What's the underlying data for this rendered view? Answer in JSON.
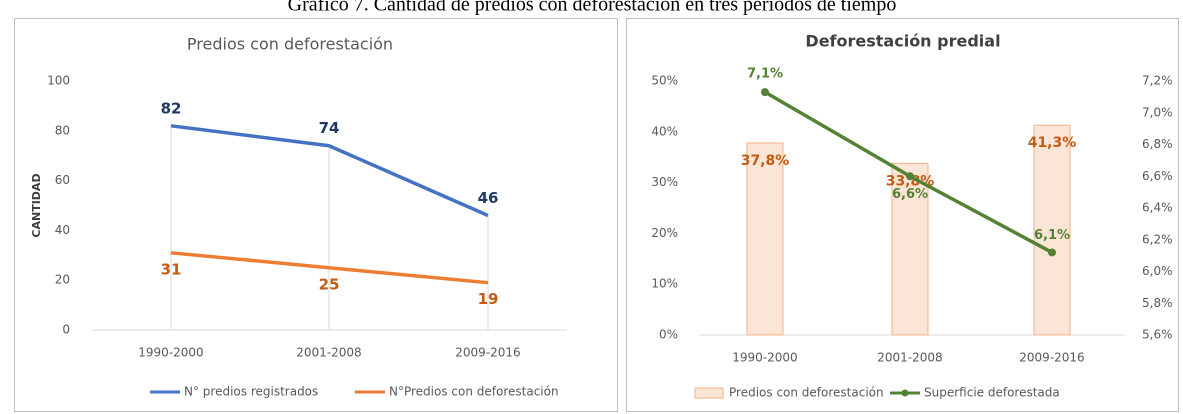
{
  "caption": "Gráfico 7. Cantidad de predios con deforestación en tres períodos de tiempo",
  "chart_data": [
    {
      "type": "line",
      "title": "Predios con deforestación",
      "y_label": "CANTIDAD",
      "categories": [
        "1990-2000",
        "2001-2008",
        "2009-2016"
      ],
      "series": [
        {
          "name": "N° predios registrados",
          "color": "#4472c4",
          "label_color": "#1f3864",
          "values": [
            82,
            74,
            46
          ]
        },
        {
          "name": "N°Predios con deforestación",
          "color": "#ed7d31",
          "label_color": "#c55a11",
          "values": [
            31,
            25,
            19
          ]
        }
      ],
      "ylim": [
        0,
        100
      ],
      "yticks": [
        0,
        20,
        40,
        60,
        80,
        100
      ],
      "grid": false,
      "legend": "bottom"
    },
    {
      "type": "bar_line",
      "title": "Deforestación predial",
      "categories": [
        "1990-2000",
        "2001-2008",
        "2009-2016"
      ],
      "series": [
        {
          "name": "Predios con deforestación",
          "type": "bar",
          "color": "#fbe5d6",
          "edge_color": "#f4b183",
          "label_color": "#c55a11",
          "values": [
            37.8,
            33.8,
            41.3
          ],
          "value_labels": [
            "37,8%",
            "33,8%",
            "41,3%"
          ]
        },
        {
          "name": "Superficie deforestada",
          "type": "line",
          "axis": "y2",
          "color": "#548235",
          "label_color": "#548235",
          "values": [
            7.13,
            6.6,
            6.12
          ],
          "value_labels": [
            "7,1%",
            "6,6%",
            "6,1%"
          ]
        }
      ],
      "ylim": [
        0,
        50
      ],
      "yticks": [
        {
          "value": 0,
          "label": "0%"
        },
        {
          "value": 10,
          "label": "10%"
        },
        {
          "value": 20,
          "label": "20%"
        },
        {
          "value": 30,
          "label": "30%"
        },
        {
          "value": 40,
          "label": "40%"
        },
        {
          "value": 50,
          "label": "50%"
        }
      ],
      "y2lim": [
        5.6,
        7.2
      ],
      "y2ticks": [
        {
          "value": 5.6,
          "label": "5,6%"
        },
        {
          "value": 5.8,
          "label": "5,8%"
        },
        {
          "value": 6.0,
          "label": "6,0%"
        },
        {
          "value": 6.2,
          "label": "6,2%"
        },
        {
          "value": 6.4,
          "label": "6,4%"
        },
        {
          "value": 6.6,
          "label": "6,6%"
        },
        {
          "value": 6.8,
          "label": "6,8%"
        },
        {
          "value": 7.0,
          "label": "7,0%"
        },
        {
          "value": 7.2,
          "label": "7,2%"
        }
      ],
      "grid": false,
      "legend": "bottom"
    }
  ]
}
